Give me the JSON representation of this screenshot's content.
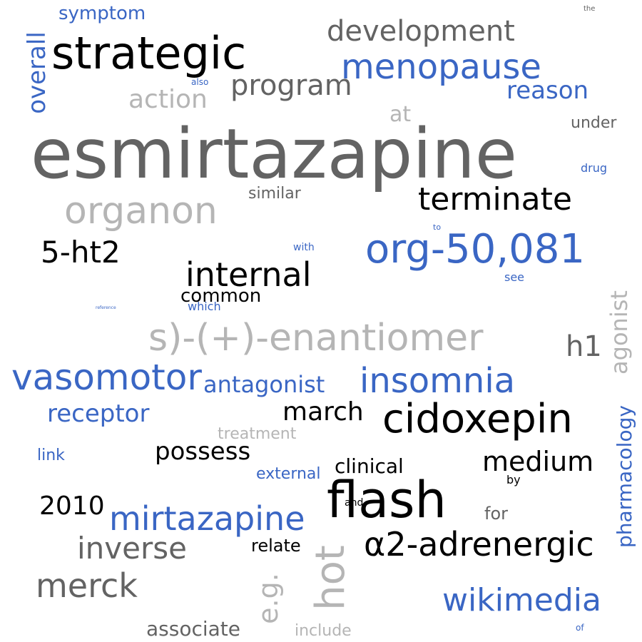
{
  "colors": {
    "blue": "#3a66c4",
    "black": "#000000",
    "dark_gray": "#636363",
    "light_gray": "#b5b5b5"
  },
  "words": {
    "esmirtazapine": "esmirtazapine",
    "strategic": "strategic",
    "development": "development",
    "menopause": "menopause",
    "program": "program",
    "action": "action",
    "reason": "reason",
    "symptom": "symptom",
    "overall": "overall",
    "the": "the",
    "also": "also",
    "at": "at",
    "under": "under",
    "drug": "drug",
    "organon": "organon",
    "similar": "similar",
    "terminate": "terminate",
    "to": "to",
    "ht2": "5-ht2",
    "org": "org-50,081",
    "with": "with",
    "internal": "internal",
    "see": "see",
    "common": "common",
    "reference": "reference",
    "which": "which",
    "agonist": "agonist",
    "enantiomer": "s)-(+)-enantiomer",
    "h1": "h1",
    "vasomotor": "vasomotor",
    "antagonist": "antagonist",
    "insomnia": "insomnia",
    "receptor": "receptor",
    "march": "march",
    "cidoxepin": "cidoxepin",
    "treatment": "treatment",
    "pharmacology": "pharmacology",
    "link": "link",
    "possess": "possess",
    "medium": "medium",
    "clinical": "clinical",
    "external": "external",
    "by": "by",
    "flash": "flash",
    "and": "and",
    "year": "2010",
    "mirtazapine": "mirtazapine",
    "for": "for",
    "inverse": "inverse",
    "relate": "relate",
    "hot": "hot",
    "adrenergic": "α2-adrenergic",
    "merck": "merck",
    "eg": "e.g.",
    "wikimedia": "wikimedia",
    "associate": "associate",
    "include": "include",
    "of": "of"
  }
}
